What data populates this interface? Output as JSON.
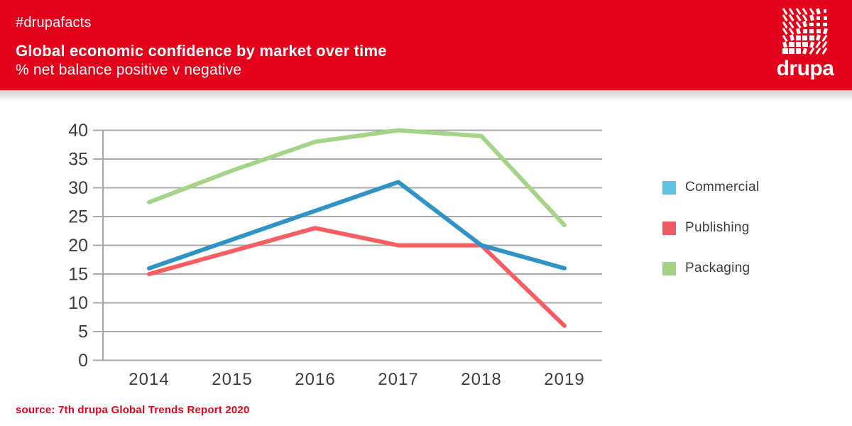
{
  "header": {
    "hashtag": "#drupafacts",
    "title": "Global economic confidence by market over time",
    "subtitle": "% net balance positive v negative"
  },
  "logo": {
    "wordmark": "drupa"
  },
  "source": {
    "text": "source: 7th drupa Global Trends Report 2020"
  },
  "colors": {
    "brand_red": "#e2001a",
    "grid": "#a8a8a8",
    "tick_text": "#3d3d3d"
  },
  "chart_data": {
    "type": "line",
    "title": "Global economic confidence by market over time",
    "subtitle": "% net balance positive v negative",
    "categories": [
      "2014",
      "2015",
      "2016",
      "2017",
      "2018",
      "2019"
    ],
    "series": [
      {
        "name": "Commercial",
        "color": "#3093c6",
        "legend_color": "#5cc3e6",
        "values": [
          16,
          21,
          26,
          31,
          20,
          16
        ]
      },
      {
        "name": "Publishing",
        "color": "#f75e63",
        "legend_color": "#ee5966",
        "values": [
          15,
          19,
          23,
          20,
          20,
          6
        ]
      },
      {
        "name": "Packaging",
        "color": "#a5d389",
        "legend_color": "#a4d283",
        "values": [
          27.5,
          33,
          38,
          40,
          39,
          23.5
        ]
      }
    ],
    "ylim": [
      0,
      40
    ],
    "ytick_step": 5,
    "grid": true,
    "legend_position": "right"
  }
}
